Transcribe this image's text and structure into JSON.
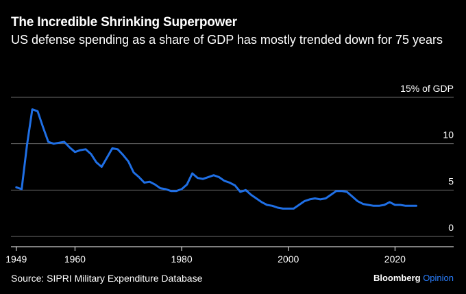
{
  "header": {
    "title": "The Incredible Shrinking Superpower",
    "subtitle": "US defense spending as a share of GDP has mostly trended down for 75 years"
  },
  "footer": {
    "source": "Source: SIPRI Military Expenditure Database",
    "brand": "Bloomberg",
    "brand_suffix": "Opinion"
  },
  "colors": {
    "line": "#1f6fe5",
    "grid": "#6b6b6b",
    "background": "#000000",
    "brand_accent": "#2a7fff"
  },
  "chart_data": {
    "type": "line",
    "title": "The Incredible Shrinking Superpower",
    "subtitle": "US defense spending as a share of GDP has mostly trended down for 75 years",
    "xlim": [
      1948,
      2031
    ],
    "ylim": [
      0,
      15
    ],
    "x_ticks": [
      {
        "value": 1949,
        "label": "1949"
      },
      {
        "value": 1960,
        "label": "1960"
      },
      {
        "value": 1980,
        "label": "1980"
      },
      {
        "value": 2000,
        "label": "2000"
      },
      {
        "value": 2020,
        "label": "2020"
      }
    ],
    "y_ticks": [
      {
        "value": 0,
        "label": "0"
      },
      {
        "value": 5,
        "label": "5"
      },
      {
        "value": 10,
        "label": "10"
      },
      {
        "value": 15,
        "label": "15% of GDP"
      }
    ],
    "grid": true,
    "series": [
      {
        "x": [
          1949,
          1950,
          1951,
          1952,
          1953,
          1954,
          1955,
          1956,
          1957,
          1958,
          1959,
          1960,
          1961,
          1962,
          1963,
          1964,
          1965,
          1966,
          1967,
          1968,
          1969,
          1970,
          1971,
          1972,
          1973,
          1974,
          1975,
          1976,
          1977,
          1978,
          1979,
          1980,
          1981,
          1982,
          1983,
          1984,
          1985,
          1986,
          1987,
          1988,
          1989,
          1990,
          1991,
          1992,
          1993,
          1994,
          1995,
          1996,
          1997,
          1998,
          1999,
          2000,
          2001,
          2002,
          2003,
          2004,
          2005,
          2006,
          2007,
          2008,
          2009,
          2010,
          2011,
          2012,
          2013,
          2014,
          2015,
          2016,
          2017,
          2018,
          2019,
          2020,
          2021,
          2022,
          2023,
          2024
        ],
        "values": [
          5.3,
          5.1,
          9.8,
          13.7,
          13.5,
          11.8,
          10.2,
          10.0,
          10.1,
          10.2,
          9.6,
          9.1,
          9.3,
          9.4,
          8.9,
          8.0,
          7.5,
          8.5,
          9.5,
          9.4,
          8.8,
          8.1,
          6.9,
          6.4,
          5.8,
          5.9,
          5.6,
          5.2,
          5.1,
          4.9,
          4.9,
          5.1,
          5.6,
          6.8,
          6.3,
          6.2,
          6.4,
          6.6,
          6.4,
          6.0,
          5.8,
          5.5,
          4.8,
          5.0,
          4.5,
          4.1,
          3.7,
          3.4,
          3.3,
          3.1,
          3.0,
          3.0,
          3.0,
          3.4,
          3.8,
          4.0,
          4.1,
          4.0,
          4.1,
          4.5,
          4.9,
          4.9,
          4.8,
          4.3,
          3.8,
          3.5,
          3.4,
          3.3,
          3.3,
          3.4,
          3.7,
          3.4,
          3.4,
          3.3,
          3.3,
          3.3
        ]
      }
    ]
  }
}
